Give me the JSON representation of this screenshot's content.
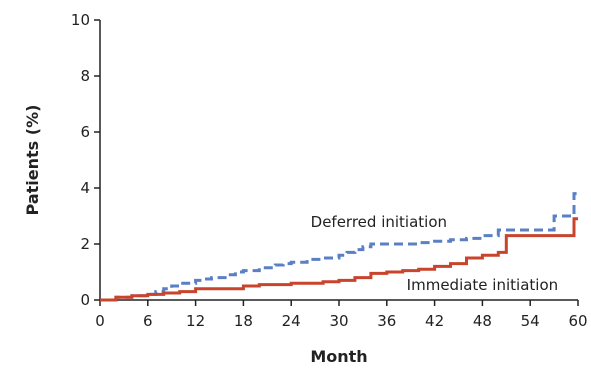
{
  "chart_data": {
    "type": "line",
    "title": "",
    "xlabel": "Month",
    "ylabel": "Patients (%)",
    "xlim": [
      0,
      60
    ],
    "ylim": [
      0,
      10
    ],
    "x_ticks": [
      0,
      6,
      12,
      18,
      24,
      30,
      36,
      42,
      48,
      54,
      60
    ],
    "y_ticks": [
      0,
      2,
      4,
      6,
      8,
      10
    ],
    "grid": false,
    "legend": "none (inline labels)",
    "series": [
      {
        "name": "Deferred initiation",
        "color": "#5b7fc4",
        "dash": "dashed",
        "x": [
          0,
          2,
          4,
          6,
          7,
          8,
          9,
          10,
          12,
          13,
          14,
          16,
          17,
          18,
          20,
          22,
          23,
          24,
          26,
          28,
          30,
          31,
          32,
          33,
          34,
          36,
          38,
          40,
          42,
          44,
          46,
          48,
          50,
          52,
          54,
          56,
          57,
          58,
          59,
          59.5,
          60
        ],
        "y": [
          0,
          0.1,
          0.15,
          0.2,
          0.3,
          0.4,
          0.5,
          0.6,
          0.7,
          0.75,
          0.8,
          0.9,
          1.0,
          1.05,
          1.15,
          1.25,
          1.3,
          1.35,
          1.45,
          1.5,
          1.6,
          1.7,
          1.8,
          1.9,
          2.0,
          2.0,
          2.0,
          2.05,
          2.1,
          2.15,
          2.2,
          2.3,
          2.5,
          2.5,
          2.5,
          2.5,
          3.0,
          3.0,
          3.0,
          3.8,
          3.8
        ]
      },
      {
        "name": "Immediate initiation",
        "color": "#c8442c",
        "dash": "solid",
        "x": [
          0,
          2,
          4,
          6,
          8,
          10,
          12,
          14,
          16,
          18,
          20,
          24,
          28,
          30,
          32,
          34,
          36,
          38,
          40,
          42,
          44,
          46,
          48,
          50,
          51,
          52,
          54,
          56,
          58,
          59.5,
          60
        ],
        "y": [
          0,
          0.1,
          0.15,
          0.2,
          0.25,
          0.3,
          0.4,
          0.4,
          0.4,
          0.5,
          0.55,
          0.6,
          0.65,
          0.7,
          0.8,
          0.95,
          1.0,
          1.05,
          1.1,
          1.2,
          1.3,
          1.5,
          1.6,
          1.7,
          2.3,
          2.3,
          2.3,
          2.3,
          2.3,
          2.9,
          2.9
        ]
      }
    ],
    "annotations": [
      {
        "text": "Deferred initiation",
        "x": 35,
        "y": 2.6
      },
      {
        "text": "Immediate initiation",
        "x": 48,
        "y": 0.35
      }
    ]
  }
}
